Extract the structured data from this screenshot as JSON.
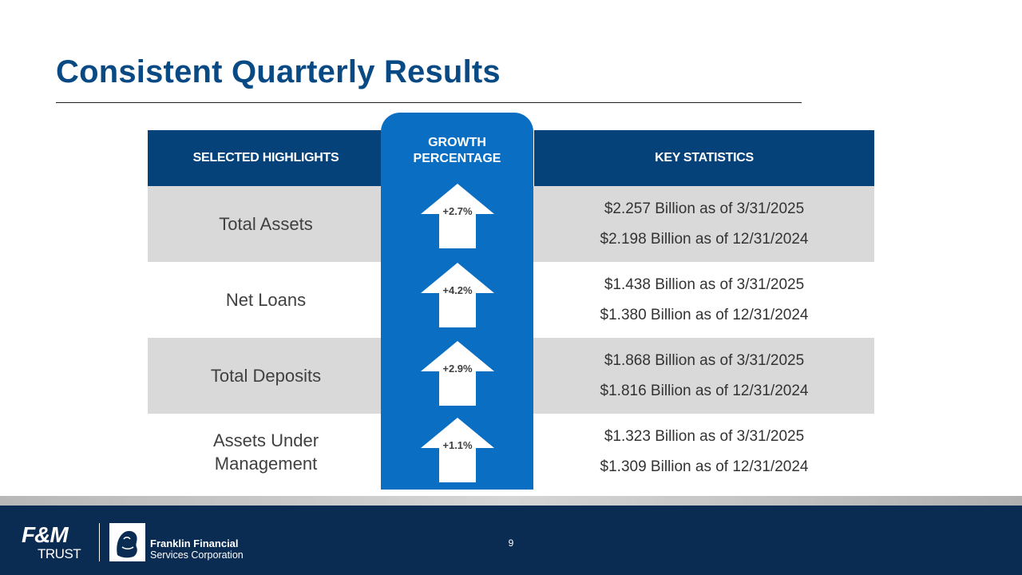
{
  "title": "Consistent Quarterly Results",
  "table": {
    "header_left": "SELECTED HIGHLIGHTS",
    "header_growth_line1": "GROWTH",
    "header_growth_line2": "PERCENTAGE",
    "header_right": "KEY STATISTICS",
    "rows": [
      {
        "label": "Total Assets",
        "growth": "+2.7%",
        "stat1": "$2.257 Billion as of 3/31/2025",
        "stat2": "$2.198 Billion as of 12/31/2024"
      },
      {
        "label_line1": "Net Loans",
        "growth": "+4.2%",
        "stat1": "$1.438 Billion as of 3/31/2025",
        "stat2": "$1.380 Billion as of 12/31/2024"
      },
      {
        "label": "Total Deposits",
        "growth": "+2.9%",
        "stat1": "$1.868 Billion as of 3/31/2025",
        "stat2": "$1.816 Billion as of 12/31/2024"
      },
      {
        "label_line1": "Assets Under",
        "label_line2": "Management",
        "growth": "+1.1%",
        "stat1": "$1.323 Billion as of 3/31/2025",
        "stat2": "$1.309 Billion as of 12/31/2024"
      }
    ]
  },
  "footer": {
    "page_number": "9",
    "fm_logo_top": "F&M",
    "fm_logo_bottom": "TRUST",
    "ffsc_line1": "Franklin Financial",
    "ffsc_line2": "Services Corporation"
  },
  "colors": {
    "title": "#0a4a84",
    "header": "#05427a",
    "growth_column": "#0a6fc2",
    "row_shade": "#d9d9d9",
    "footer": "#0b2c52"
  },
  "icons": [
    "up-arrow-icon",
    "franklin-emblem-icon"
  ]
}
